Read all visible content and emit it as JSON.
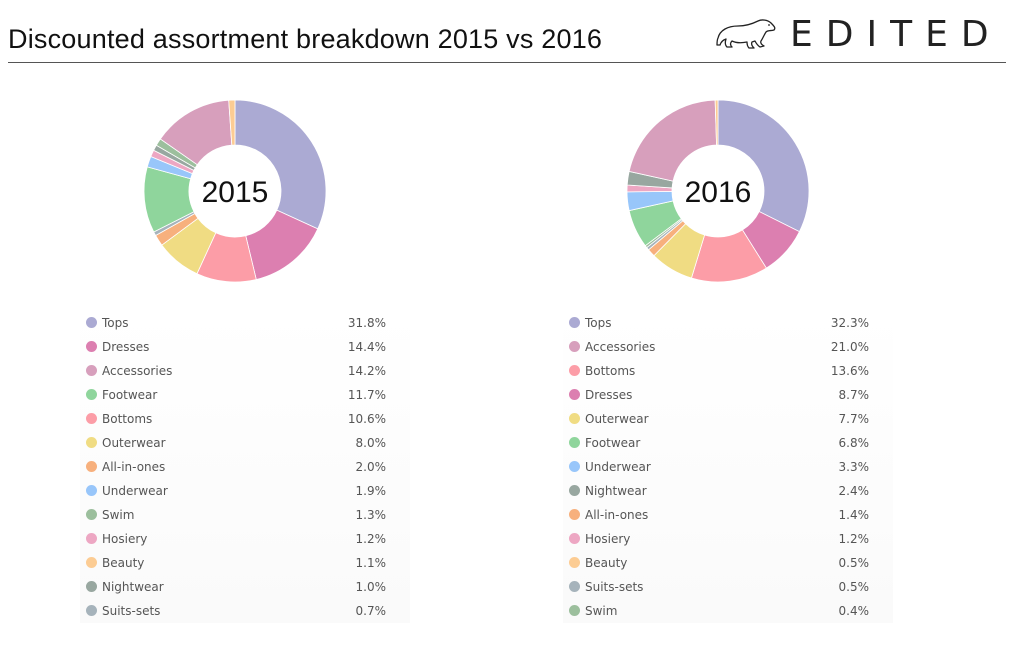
{
  "page": {
    "title": "Discounted assortment breakdown 2015 vs 2016",
    "brand": "EDITED",
    "brand_logo_icon": "polar-bear-icon"
  },
  "colors": {
    "Tops": "#abaad3",
    "Dresses": "#dc7fb0",
    "Accessories": "#d79fbc",
    "Footwear": "#8fd59c",
    "Bottoms": "#fc9da7",
    "Outerwear": "#f0dc83",
    "All-in-ones": "#f7b07d",
    "Underwear": "#98c6fa",
    "Swim": "#9cbf9d",
    "Hosiery": "#eda7c3",
    "Beauty": "#fccc93",
    "Nightwear": "#98a7a0",
    "Suits-sets": "#a6b3bb"
  },
  "chart_data": [
    {
      "type": "pie",
      "center_label": "2015",
      "categories": [
        "Tops",
        "Dresses",
        "Accessories",
        "Footwear",
        "Bottoms",
        "Outerwear",
        "All-in-ones",
        "Underwear",
        "Swim",
        "Hosiery",
        "Beauty",
        "Nightwear",
        "Suits-sets"
      ],
      "values": [
        31.8,
        14.4,
        14.2,
        11.7,
        10.6,
        8.0,
        2.0,
        1.9,
        1.3,
        1.2,
        1.1,
        1.0,
        0.7
      ],
      "value_labels": [
        "31.8%",
        "14.4%",
        "14.2%",
        "11.7%",
        "10.6%",
        "8.0%",
        "2.0%",
        "1.9%",
        "1.3%",
        "1.2%",
        "1.1%",
        "1.0%",
        "0.7%"
      ],
      "slice_order": [
        "Tops",
        "Dresses",
        "Bottoms",
        "Outerwear",
        "All-in-ones",
        "Suits-sets",
        "Footwear",
        "Underwear",
        "Hosiery",
        "Nightwear",
        "Swim",
        "Accessories",
        "Beauty"
      ],
      "legend_placement": "bottom"
    },
    {
      "type": "pie",
      "center_label": "2016",
      "categories": [
        "Tops",
        "Accessories",
        "Bottoms",
        "Dresses",
        "Outerwear",
        "Footwear",
        "Underwear",
        "Nightwear",
        "All-in-ones",
        "Hosiery",
        "Beauty",
        "Suits-sets",
        "Swim"
      ],
      "values": [
        32.3,
        21.0,
        13.6,
        8.7,
        7.7,
        6.8,
        3.3,
        2.4,
        1.4,
        1.2,
        0.5,
        0.5,
        0.4
      ],
      "value_labels": [
        "32.3%",
        "21.0%",
        "13.6%",
        "8.7%",
        "7.7%",
        "6.8%",
        "3.3%",
        "2.4%",
        "1.4%",
        "1.2%",
        "0.5%",
        "0.5%",
        "0.4%"
      ],
      "slice_order": [
        "Tops",
        "Dresses",
        "Bottoms",
        "Outerwear",
        "All-in-ones",
        "Suits-sets",
        "Swim",
        "Footwear",
        "Underwear",
        "Hosiery",
        "Nightwear",
        "Accessories",
        "Beauty"
      ],
      "legend_placement": "bottom"
    }
  ]
}
